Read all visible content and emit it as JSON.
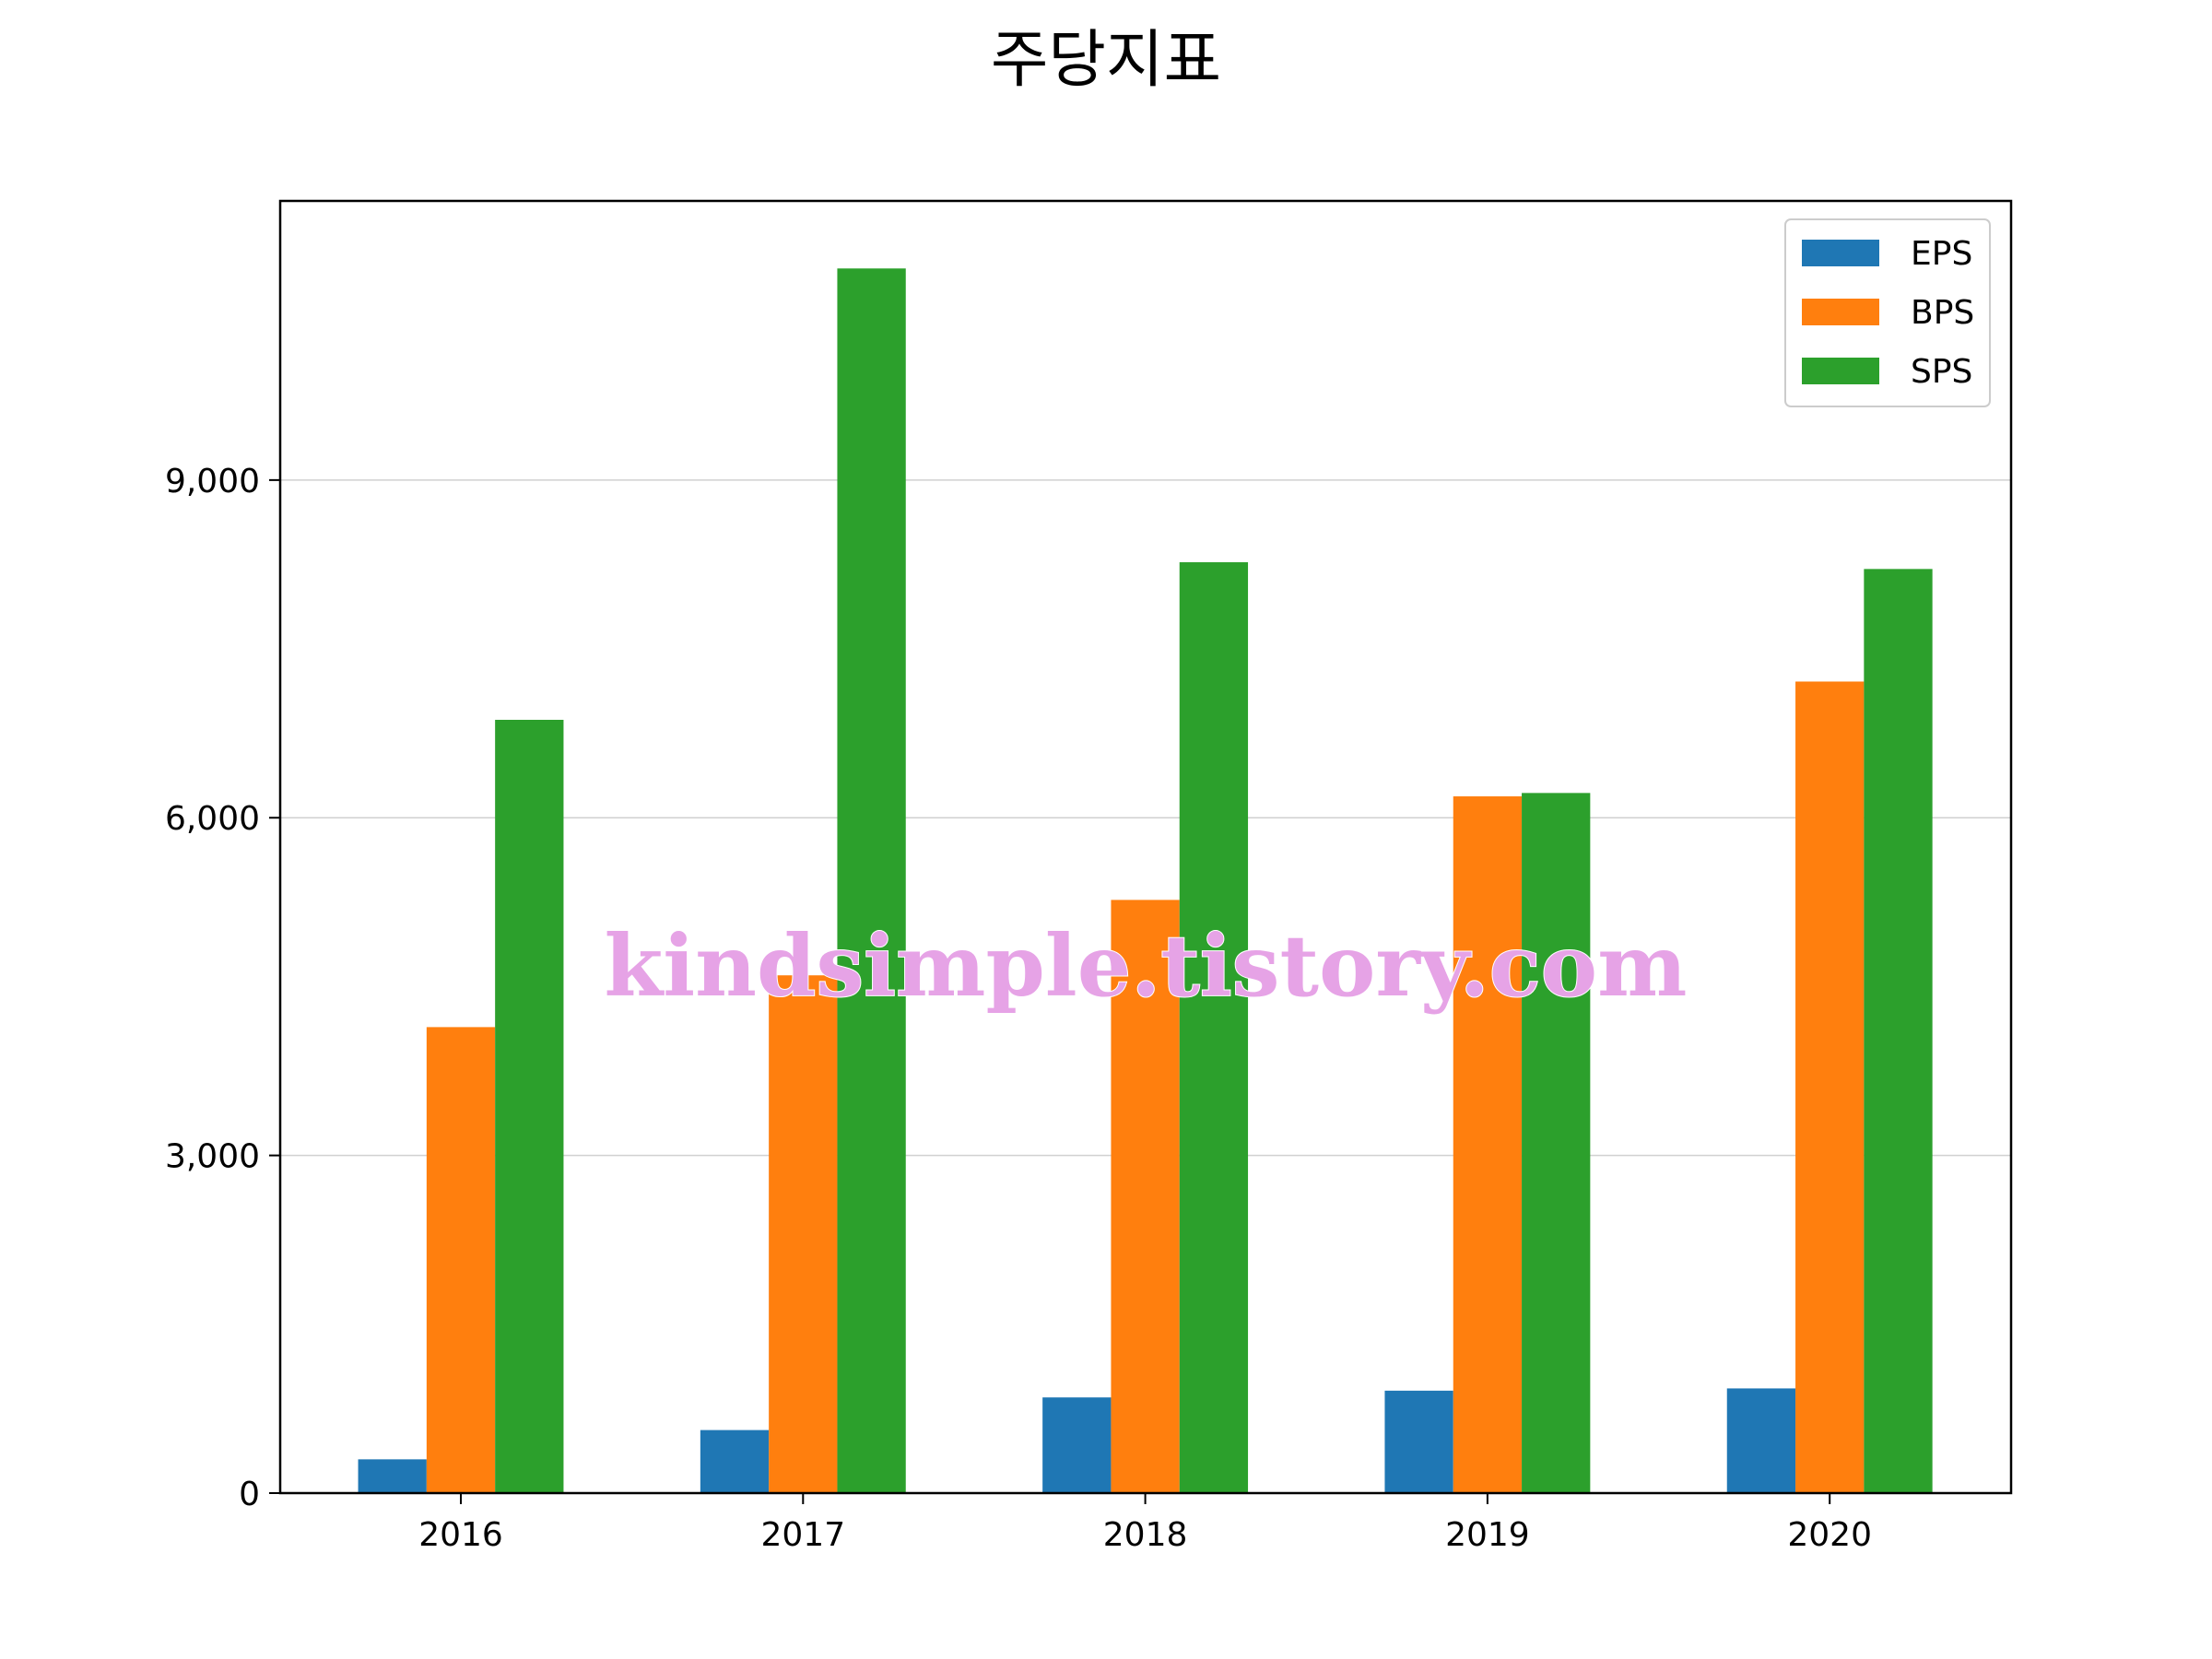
{
  "chart_data": {
    "type": "bar",
    "title": "주당지표",
    "xlabel": "",
    "ylabel": "",
    "categories": [
      "2016",
      "2017",
      "2018",
      "2019",
      "2020"
    ],
    "series": [
      {
        "name": "EPS",
        "color": "#1f77b4",
        "values": [
          300,
          560,
          850,
          910,
          930
        ]
      },
      {
        "name": "BPS",
        "color": "#ff7f0e",
        "values": [
          4140,
          4600,
          5270,
          6190,
          7210
        ]
      },
      {
        "name": "SPS",
        "color": "#2ca02c",
        "values": [
          6870,
          10880,
          8270,
          6220,
          8210
        ]
      }
    ],
    "ylim": [
      0,
      11480
    ],
    "yticks": [
      0,
      3000,
      6000,
      9000
    ],
    "ytick_labels": [
      "0",
      "3,000",
      "6,000",
      "9,000"
    ],
    "grid": "y",
    "legend_position": "top-right"
  },
  "watermark": {
    "text": "kindsimple.tistory.com",
    "color": "#e6a3e6"
  }
}
